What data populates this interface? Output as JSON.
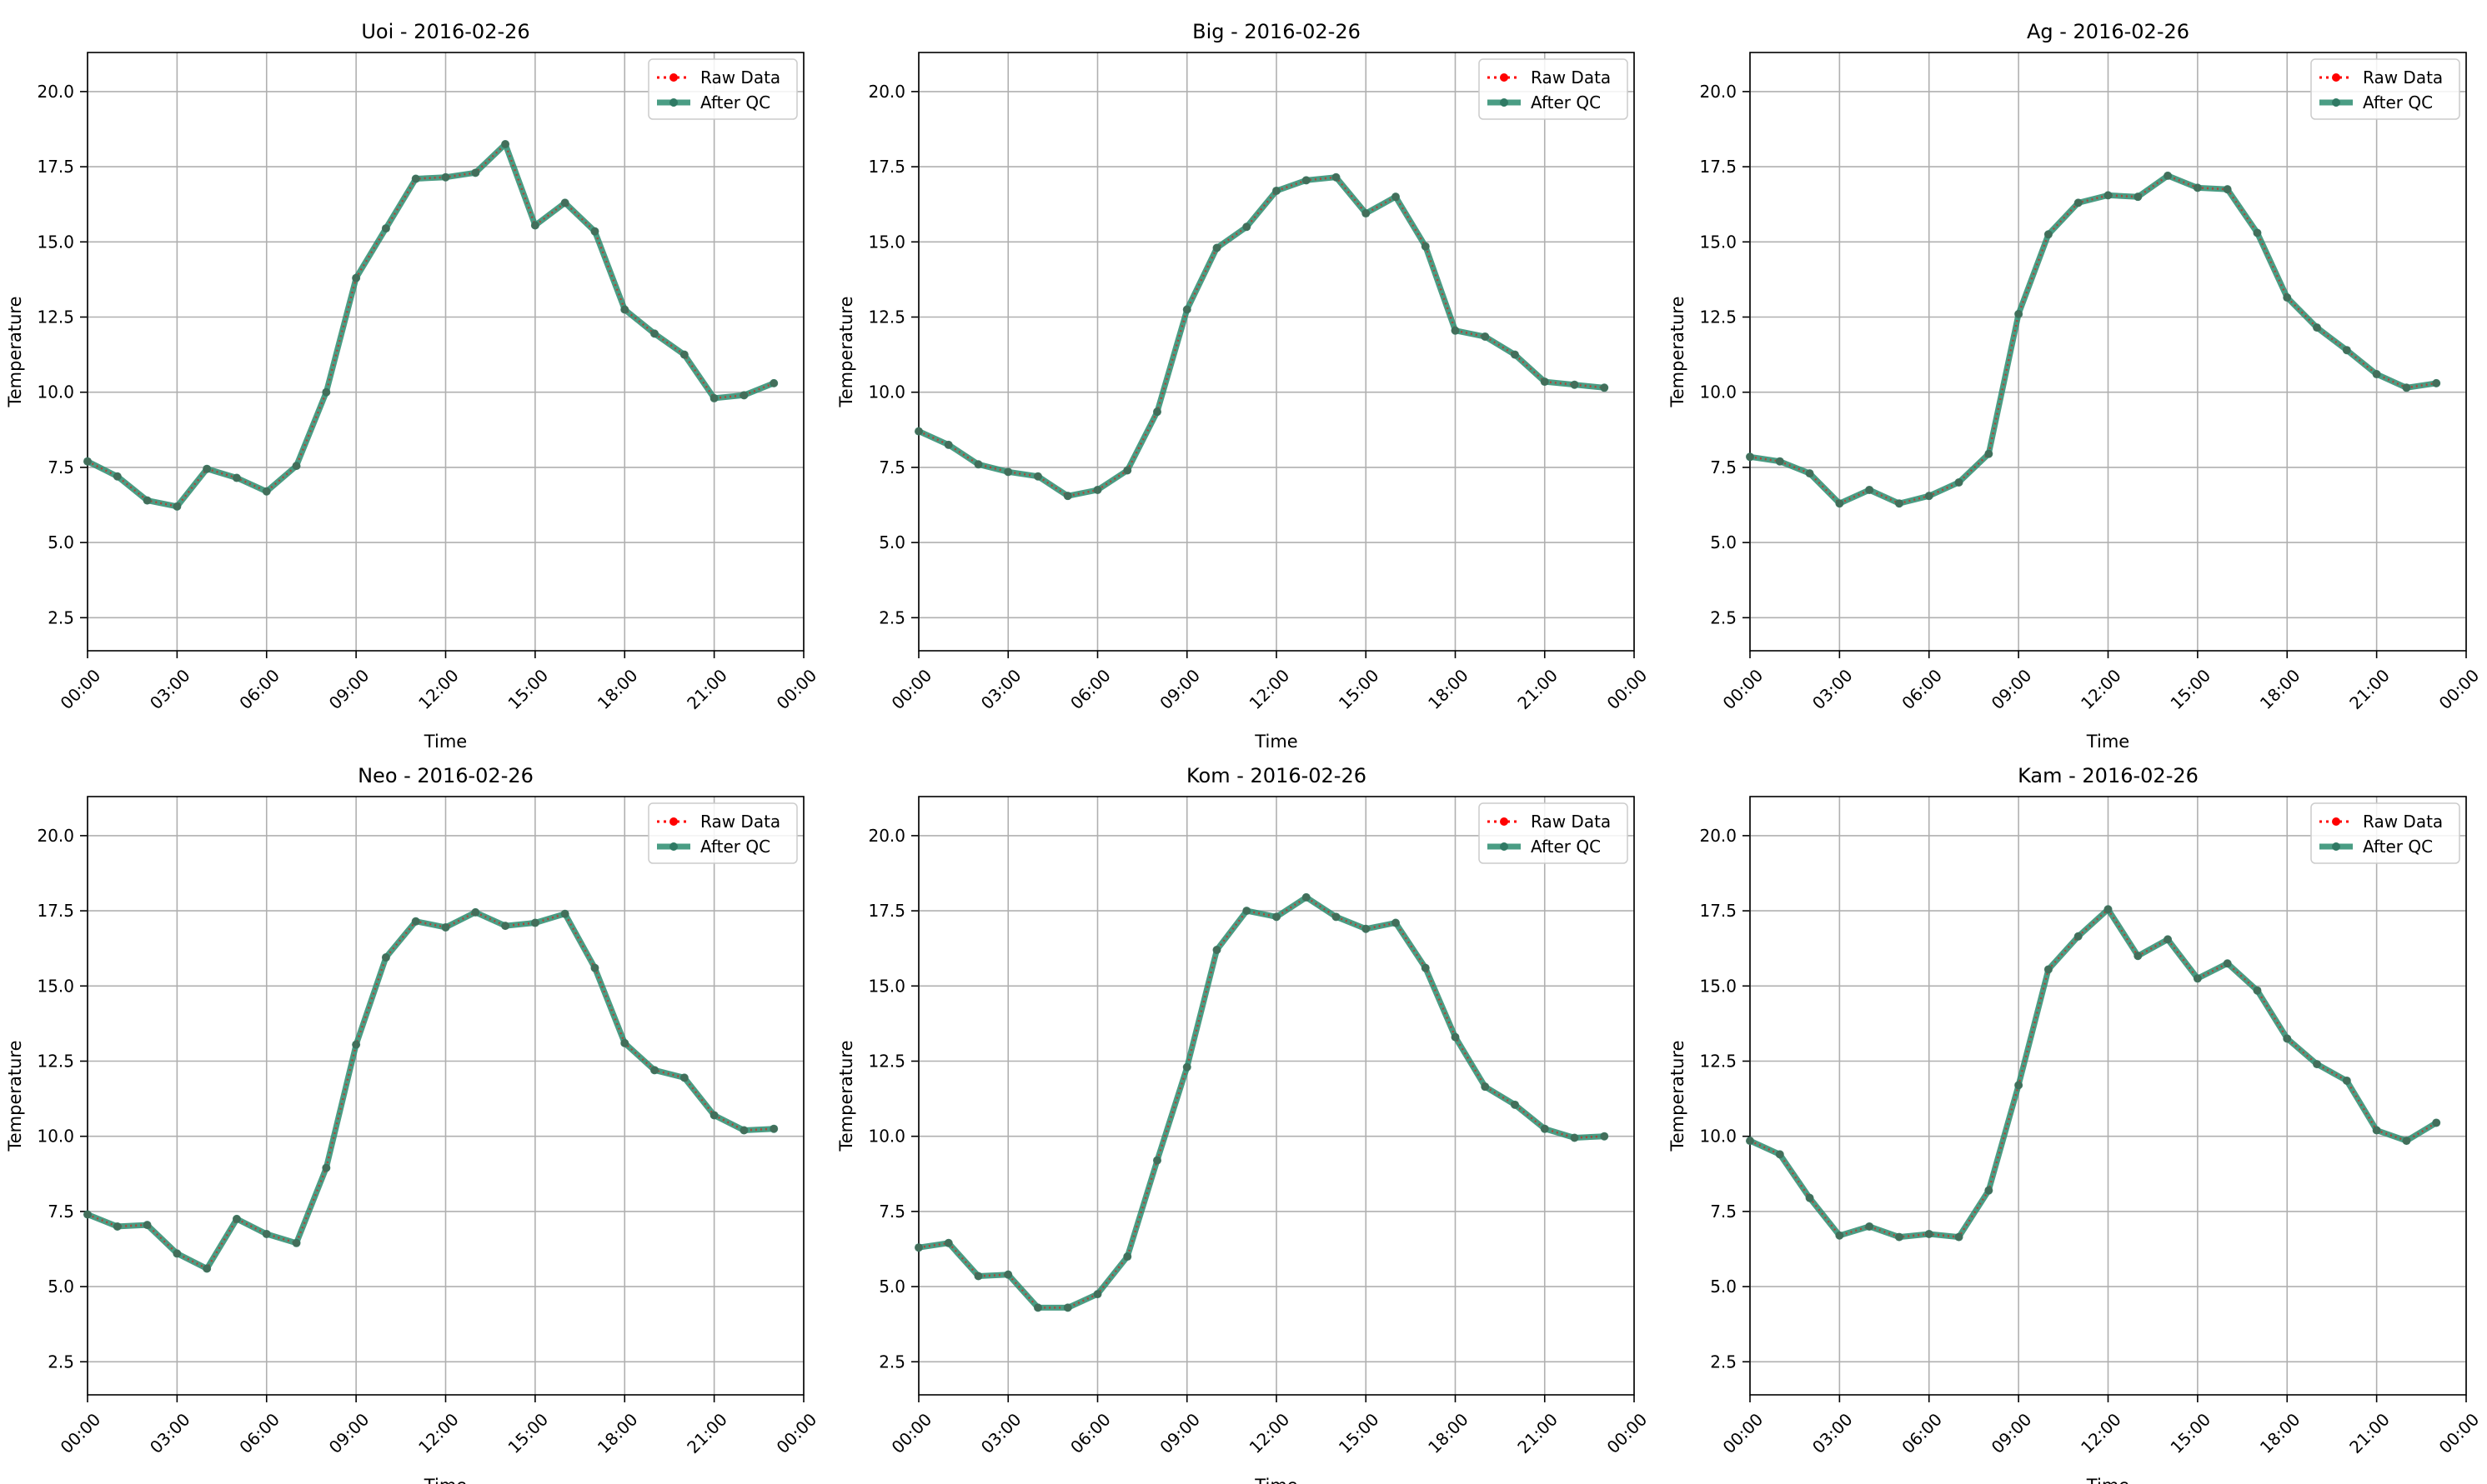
{
  "colors": {
    "raw": "#ff0000",
    "after_qc": "#2a8c6e",
    "after_qc_marker": "#2f7a64",
    "grid": "#b0b0b0",
    "axis": "#000000",
    "background": "#ffffff"
  },
  "legend_labels": [
    "Raw Data",
    "After QC"
  ],
  "chart_data": [
    {
      "type": "line",
      "title": "Uoi - 2016-02-26",
      "xlabel": "Time",
      "ylabel": "Temperature",
      "x_ticks": [
        "00:00",
        "03:00",
        "06:00",
        "09:00",
        "12:00",
        "15:00",
        "18:00",
        "21:00",
        "00:00"
      ],
      "y_ticks": [
        "2.5",
        "5.0",
        "7.5",
        "10.0",
        "12.5",
        "15.0",
        "17.5",
        "20.0"
      ],
      "xlim": [
        "2016-02-26 00:00",
        "2016-02-27 00:00"
      ],
      "ylim": [
        1.4,
        21.3
      ],
      "grid": true,
      "legend_position": "top-right",
      "x": [
        "00:00",
        "01:00",
        "02:00",
        "03:00",
        "04:00",
        "05:00",
        "06:00",
        "07:00",
        "08:00",
        "09:00",
        "10:00",
        "11:00",
        "12:00",
        "13:00",
        "14:00",
        "15:00",
        "16:00",
        "17:00",
        "18:00",
        "19:00",
        "20:00",
        "21:00",
        "22:00",
        "23:00"
      ],
      "series": [
        {
          "name": "Raw Data",
          "values": [
            7.7,
            7.2,
            6.4,
            6.2,
            7.45,
            7.15,
            6.7,
            7.55,
            10.0,
            13.8,
            15.45,
            17.1,
            17.15,
            17.3,
            18.25,
            15.55,
            16.3,
            15.35,
            12.75,
            11.95,
            11.25,
            9.8,
            9.9,
            10.3
          ]
        },
        {
          "name": "After QC",
          "values": [
            7.7,
            7.2,
            6.4,
            6.2,
            7.45,
            7.15,
            6.7,
            7.55,
            10.0,
            13.8,
            15.45,
            17.1,
            17.15,
            17.3,
            18.25,
            15.55,
            16.3,
            15.35,
            12.75,
            11.95,
            11.25,
            9.8,
            9.9,
            10.3
          ]
        }
      ]
    },
    {
      "type": "line",
      "title": "Big - 2016-02-26",
      "xlabel": "Time",
      "ylabel": "Temperature",
      "x_ticks": [
        "00:00",
        "03:00",
        "06:00",
        "09:00",
        "12:00",
        "15:00",
        "18:00",
        "21:00",
        "00:00"
      ],
      "y_ticks": [
        "2.5",
        "5.0",
        "7.5",
        "10.0",
        "12.5",
        "15.0",
        "17.5",
        "20.0"
      ],
      "xlim": [
        "2016-02-26 00:00",
        "2016-02-27 00:00"
      ],
      "ylim": [
        1.4,
        21.3
      ],
      "grid": true,
      "legend_position": "top-right",
      "x": [
        "00:00",
        "01:00",
        "02:00",
        "03:00",
        "04:00",
        "05:00",
        "06:00",
        "07:00",
        "08:00",
        "09:00",
        "10:00",
        "11:00",
        "12:00",
        "13:00",
        "14:00",
        "15:00",
        "16:00",
        "17:00",
        "18:00",
        "19:00",
        "20:00",
        "21:00",
        "22:00",
        "23:00"
      ],
      "series": [
        {
          "name": "Raw Data",
          "values": [
            8.7,
            8.25,
            7.6,
            7.35,
            7.2,
            6.55,
            6.75,
            7.4,
            9.35,
            12.75,
            14.8,
            15.5,
            16.7,
            17.05,
            17.15,
            15.95,
            16.5,
            14.85,
            12.05,
            11.85,
            11.25,
            10.35,
            10.25,
            10.15
          ]
        },
        {
          "name": "After QC",
          "values": [
            8.7,
            8.25,
            7.6,
            7.35,
            7.2,
            6.55,
            6.75,
            7.4,
            9.35,
            12.75,
            14.8,
            15.5,
            16.7,
            17.05,
            17.15,
            15.95,
            16.5,
            14.85,
            12.05,
            11.85,
            11.25,
            10.35,
            10.25,
            10.15
          ]
        }
      ]
    },
    {
      "type": "line",
      "title": "Ag - 2016-02-26",
      "xlabel": "Time",
      "ylabel": "Temperature",
      "x_ticks": [
        "00:00",
        "03:00",
        "06:00",
        "09:00",
        "12:00",
        "15:00",
        "18:00",
        "21:00",
        "00:00"
      ],
      "y_ticks": [
        "2.5",
        "5.0",
        "7.5",
        "10.0",
        "12.5",
        "15.0",
        "17.5",
        "20.0"
      ],
      "xlim": [
        "2016-02-26 00:00",
        "2016-02-27 00:00"
      ],
      "ylim": [
        1.4,
        21.3
      ],
      "grid": true,
      "legend_position": "top-right",
      "x": [
        "00:00",
        "01:00",
        "02:00",
        "03:00",
        "04:00",
        "05:00",
        "06:00",
        "07:00",
        "08:00",
        "09:00",
        "10:00",
        "11:00",
        "12:00",
        "13:00",
        "14:00",
        "15:00",
        "16:00",
        "17:00",
        "18:00",
        "19:00",
        "20:00",
        "21:00",
        "22:00",
        "23:00"
      ],
      "series": [
        {
          "name": "Raw Data",
          "values": [
            7.85,
            7.7,
            7.3,
            6.3,
            6.75,
            6.3,
            6.55,
            7.0,
            7.95,
            12.6,
            15.25,
            16.3,
            16.55,
            16.5,
            17.2,
            16.8,
            16.75,
            15.3,
            13.15,
            12.15,
            11.4,
            10.6,
            10.15,
            10.3
          ]
        },
        {
          "name": "After QC",
          "values": [
            7.85,
            7.7,
            7.3,
            6.3,
            6.75,
            6.3,
            6.55,
            7.0,
            7.95,
            12.6,
            15.25,
            16.3,
            16.55,
            16.5,
            17.2,
            16.8,
            16.75,
            15.3,
            13.15,
            12.15,
            11.4,
            10.6,
            10.15,
            10.3
          ]
        }
      ]
    },
    {
      "type": "line",
      "title": "Neo - 2016-02-26",
      "xlabel": "Time",
      "ylabel": "Temperature",
      "x_ticks": [
        "00:00",
        "03:00",
        "06:00",
        "09:00",
        "12:00",
        "15:00",
        "18:00",
        "21:00",
        "00:00"
      ],
      "y_ticks": [
        "2.5",
        "5.0",
        "7.5",
        "10.0",
        "12.5",
        "15.0",
        "17.5",
        "20.0"
      ],
      "xlim": [
        "2016-02-26 00:00",
        "2016-02-27 00:00"
      ],
      "ylim": [
        1.4,
        21.3
      ],
      "grid": true,
      "legend_position": "top-right",
      "x": [
        "00:00",
        "01:00",
        "02:00",
        "03:00",
        "04:00",
        "05:00",
        "06:00",
        "07:00",
        "08:00",
        "09:00",
        "10:00",
        "11:00",
        "12:00",
        "13:00",
        "14:00",
        "15:00",
        "16:00",
        "17:00",
        "18:00",
        "19:00",
        "20:00",
        "21:00",
        "22:00",
        "23:00"
      ],
      "series": [
        {
          "name": "Raw Data",
          "values": [
            7.4,
            7.0,
            7.05,
            6.1,
            5.6,
            7.25,
            6.75,
            6.45,
            8.95,
            13.05,
            15.95,
            17.15,
            16.95,
            17.45,
            17.0,
            17.1,
            17.4,
            15.6,
            13.1,
            12.2,
            11.95,
            10.7,
            10.2,
            10.25
          ]
        },
        {
          "name": "After QC",
          "values": [
            7.4,
            7.0,
            7.05,
            6.1,
            5.6,
            7.25,
            6.75,
            6.45,
            8.95,
            13.05,
            15.95,
            17.15,
            16.95,
            17.45,
            17.0,
            17.1,
            17.4,
            15.6,
            13.1,
            12.2,
            11.95,
            10.7,
            10.2,
            10.25
          ]
        }
      ]
    },
    {
      "type": "line",
      "title": "Kom - 2016-02-26",
      "xlabel": "Time",
      "ylabel": "Temperature",
      "x_ticks": [
        "00:00",
        "03:00",
        "06:00",
        "09:00",
        "12:00",
        "15:00",
        "18:00",
        "21:00",
        "00:00"
      ],
      "y_ticks": [
        "2.5",
        "5.0",
        "7.5",
        "10.0",
        "12.5",
        "15.0",
        "17.5",
        "20.0"
      ],
      "xlim": [
        "2016-02-26 00:00",
        "2016-02-27 00:00"
      ],
      "ylim": [
        1.4,
        21.3
      ],
      "grid": true,
      "legend_position": "top-right",
      "x": [
        "00:00",
        "01:00",
        "02:00",
        "03:00",
        "04:00",
        "05:00",
        "06:00",
        "07:00",
        "08:00",
        "09:00",
        "10:00",
        "11:00",
        "12:00",
        "13:00",
        "14:00",
        "15:00",
        "16:00",
        "17:00",
        "18:00",
        "19:00",
        "20:00",
        "21:00",
        "22:00",
        "23:00"
      ],
      "series": [
        {
          "name": "Raw Data",
          "values": [
            6.3,
            6.45,
            5.35,
            5.4,
            4.3,
            4.3,
            4.75,
            6.0,
            9.2,
            12.3,
            16.2,
            17.5,
            17.3,
            17.95,
            17.3,
            16.9,
            17.1,
            15.6,
            13.3,
            11.65,
            11.05,
            10.25,
            9.95,
            10.0
          ]
        },
        {
          "name": "After QC",
          "values": [
            6.3,
            6.45,
            5.35,
            5.4,
            4.3,
            4.3,
            4.75,
            6.0,
            9.2,
            12.3,
            16.2,
            17.5,
            17.3,
            17.95,
            17.3,
            16.9,
            17.1,
            15.6,
            13.3,
            11.65,
            11.05,
            10.25,
            9.95,
            10.0
          ]
        }
      ]
    },
    {
      "type": "line",
      "title": "Kam - 2016-02-26",
      "xlabel": "Time",
      "ylabel": "Temperature",
      "x_ticks": [
        "00:00",
        "03:00",
        "06:00",
        "09:00",
        "12:00",
        "15:00",
        "18:00",
        "21:00",
        "00:00"
      ],
      "y_ticks": [
        "2.5",
        "5.0",
        "7.5",
        "10.0",
        "12.5",
        "15.0",
        "17.5",
        "20.0"
      ],
      "xlim": [
        "2016-02-26 00:00",
        "2016-02-27 00:00"
      ],
      "ylim": [
        1.4,
        21.3
      ],
      "grid": true,
      "legend_position": "top-right",
      "x": [
        "00:00",
        "01:00",
        "02:00",
        "03:00",
        "04:00",
        "05:00",
        "06:00",
        "07:00",
        "08:00",
        "09:00",
        "10:00",
        "11:00",
        "12:00",
        "13:00",
        "14:00",
        "15:00",
        "16:00",
        "17:00",
        "18:00",
        "19:00",
        "20:00",
        "21:00",
        "22:00",
        "23:00"
      ],
      "series": [
        {
          "name": "Raw Data",
          "values": [
            9.85,
            9.4,
            7.95,
            6.7,
            7.0,
            6.65,
            6.75,
            6.65,
            8.2,
            11.7,
            15.55,
            16.65,
            17.55,
            16.0,
            16.55,
            15.25,
            15.75,
            14.85,
            13.25,
            12.4,
            11.85,
            10.2,
            9.85,
            10.45
          ]
        },
        {
          "name": "After QC",
          "values": [
            9.85,
            9.4,
            7.95,
            6.7,
            7.0,
            6.65,
            6.75,
            6.65,
            8.2,
            11.7,
            15.55,
            16.65,
            17.55,
            16.0,
            16.55,
            15.25,
            15.75,
            14.85,
            13.25,
            12.4,
            11.85,
            10.2,
            9.85,
            10.45
          ]
        }
      ]
    }
  ]
}
